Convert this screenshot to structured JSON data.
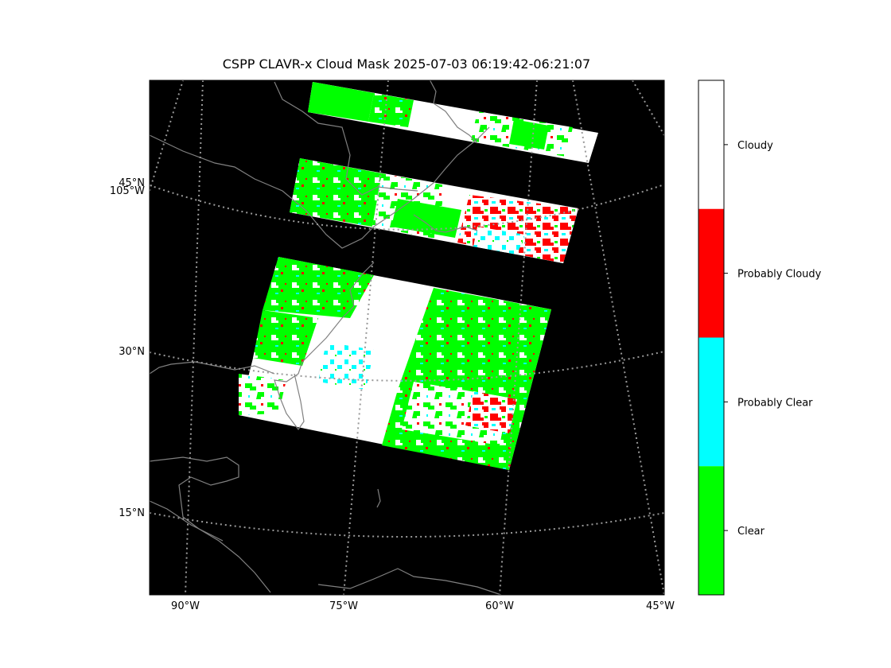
{
  "title": "CSPP CLAVR-x Cloud Mask 2025-07-03 06:19:42-06:21:07",
  "map": {
    "background_color": "#000000",
    "coastline_color": "#808080",
    "graticule_color": "#999999",
    "lat_labels": [
      "45°N",
      "30°N",
      "15°N"
    ],
    "lon_labels_bottom": [
      "90°W",
      "75°W",
      "60°W",
      "45°W"
    ],
    "lon_labels_left": [
      "105°W"
    ]
  },
  "colorbar": {
    "classes": [
      {
        "label": "Cloudy",
        "color": "#ffffff"
      },
      {
        "label": "Probably Cloudy",
        "color": "#ff0000"
      },
      {
        "label": "Probably Clear",
        "color": "#00ffff"
      },
      {
        "label": "Clear",
        "color": "#00ff00"
      }
    ]
  }
}
